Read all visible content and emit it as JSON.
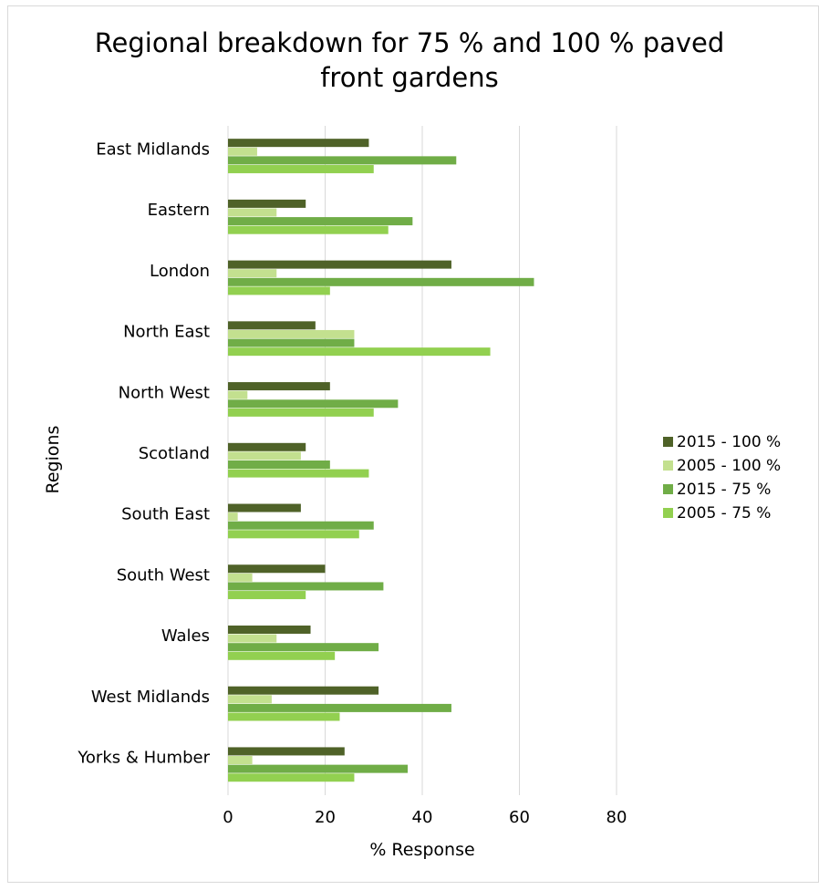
{
  "chart_data": {
    "type": "bar",
    "orientation": "horizontal",
    "title": "Regional breakdown for 75 % and 100 % paved front gardens",
    "title_lines": [
      "Regional breakdown for 75 % and 100 % paved",
      "front gardens"
    ],
    "xlabel": "% Response",
    "ylabel": "Regions",
    "xlim": [
      0,
      80
    ],
    "xticks": [
      0,
      20,
      40,
      60,
      80
    ],
    "grid": true,
    "legend_position": "right",
    "categories": [
      "East Midlands",
      "Eastern",
      "London",
      "North East",
      "North West",
      "Scotland",
      "South East",
      "South West",
      "Wales",
      "West Midlands",
      "Yorks & Humber"
    ],
    "series": [
      {
        "name": "2015 - 100 %",
        "color": "#4f6228",
        "values": [
          29,
          16,
          46,
          18,
          21,
          16,
          15,
          20,
          17,
          31,
          24
        ]
      },
      {
        "name": "2005 - 100 %",
        "color": "#c3e08f",
        "values": [
          6,
          10,
          10,
          26,
          4,
          15,
          2,
          5,
          10,
          9,
          5
        ]
      },
      {
        "name": "2015 - 75 %",
        "color": "#70ad47",
        "values": [
          47,
          38,
          63,
          26,
          35,
          21,
          30,
          32,
          31,
          46,
          37
        ]
      },
      {
        "name": "2005 - 75 %",
        "color": "#92d050",
        "values": [
          30,
          33,
          21,
          54,
          30,
          29,
          27,
          16,
          22,
          23,
          26
        ]
      }
    ]
  }
}
